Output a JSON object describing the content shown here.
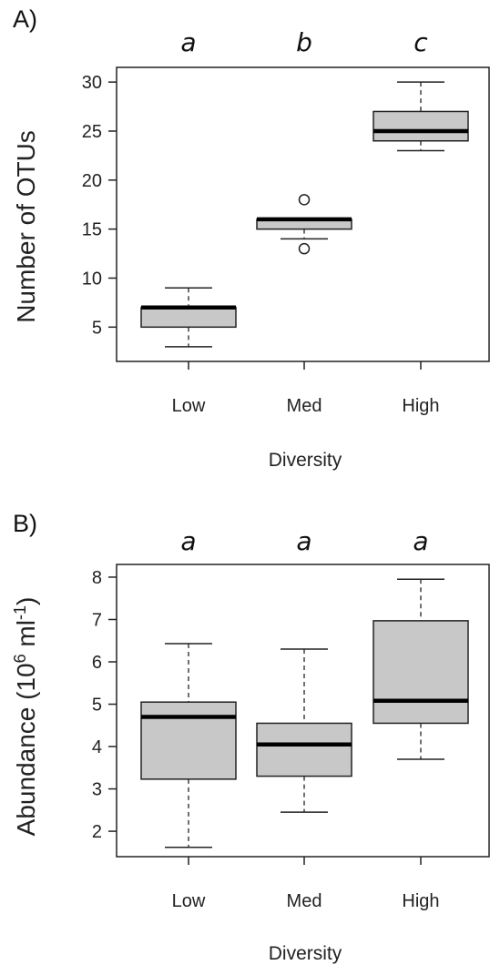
{
  "chart_data": [
    {
      "type": "box",
      "panel_label": "A)",
      "xlabel": "Diversity",
      "ylabel": "Number of OTUs",
      "categories": [
        "Low",
        "Med",
        "High"
      ],
      "significance_letters": [
        "a",
        "b",
        "c"
      ],
      "yticks": [
        5,
        10,
        15,
        20,
        25,
        30
      ],
      "ylim": [
        1.5,
        31.5
      ],
      "boxes": [
        {
          "min": 3,
          "q1": 5,
          "median": 7,
          "q3": 7,
          "max": 9,
          "outliers": []
        },
        {
          "min": 14,
          "q1": 15,
          "median": 16,
          "q3": 16,
          "max": 16,
          "outliers": [
            13,
            18
          ]
        },
        {
          "min": 23,
          "q1": 24,
          "median": 25,
          "q3": 27,
          "max": 30,
          "outliers": []
        }
      ],
      "grid": false,
      "box_fill": "#c8c8c8"
    },
    {
      "type": "box",
      "panel_label": "B)",
      "xlabel": "Diversity",
      "ylabel_main": "Abundance (10",
      "ylabel_sup1": "6",
      "ylabel_mid": " ml",
      "ylabel_sup2": "-1",
      "ylabel_end": ")",
      "categories": [
        "Low",
        "Med",
        "High"
      ],
      "significance_letters": [
        "a",
        "a",
        "a"
      ],
      "yticks": [
        2,
        3,
        4,
        5,
        6,
        7,
        8
      ],
      "ylim": [
        1.4,
        8.3
      ],
      "boxes": [
        {
          "min": 1.62,
          "q1": 3.23,
          "median": 4.7,
          "q3": 5.05,
          "max": 6.43,
          "outliers": []
        },
        {
          "min": 2.45,
          "q1": 3.3,
          "median": 4.05,
          "q3": 4.55,
          "max": 6.3,
          "outliers": []
        },
        {
          "min": 3.7,
          "q1": 4.55,
          "median": 5.08,
          "q3": 6.97,
          "max": 7.95,
          "outliers": []
        }
      ],
      "grid": false,
      "box_fill": "#c8c8c8"
    }
  ]
}
